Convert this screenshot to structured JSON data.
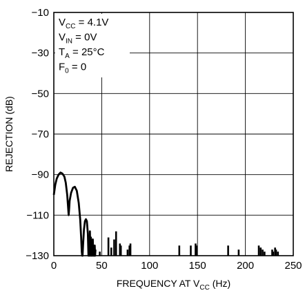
{
  "chart_data": {
    "type": "line",
    "xlabel": "FREQUENCY AT V",
    "xlabel_sub": "CC",
    "xlabel_suffix": " (Hz)",
    "ylabel": "REJECTION (dB)",
    "xlim": [
      0,
      250
    ],
    "ylim": [
      -130,
      -10
    ],
    "x_ticks": [
      0,
      50,
      100,
      150,
      200,
      250
    ],
    "y_ticks": [
      -130,
      -110,
      -90,
      -70,
      -50,
      -30,
      -10
    ],
    "grid": true,
    "annotations": [
      {
        "main": "V",
        "sub": "CC",
        "rest": " = 4.1V"
      },
      {
        "main": "V",
        "sub": "IN",
        "rest": " = 0V"
      },
      {
        "main": "T",
        "sub": "A",
        "rest": " = 25°C"
      },
      {
        "main": "F",
        "sub": "0",
        "rest": " = 0"
      }
    ],
    "series": [
      {
        "x": [
          0,
          1.5,
          3,
          5,
          7,
          9,
          11,
          12.5,
          14,
          15.5,
          16,
          16.5,
          18,
          20,
          22,
          24,
          26,
          27.5,
          28.5,
          29.2,
          29.6,
          30,
          30.6,
          31.5,
          32.5,
          33.5,
          34.5,
          35.5,
          36.2,
          36.8,
          37.2,
          37.7,
          38.2,
          38.7,
          39.2,
          39.7,
          40.2,
          40.7,
          41.2,
          41.7,
          42.2,
          42.7,
          43.1,
          43.5
        ],
        "y": [
          -100,
          -95,
          -92,
          -90,
          -89,
          -89.5,
          -91,
          -94,
          -100,
          -110,
          -107,
          -103,
          -99,
          -96.5,
          -96,
          -98,
          -104,
          -112,
          -121,
          -128,
          -130,
          -130,
          -124,
          -117,
          -113,
          -112,
          -113,
          -119,
          -130,
          -121,
          -130,
          -118,
          -130,
          -121,
          -130,
          -124,
          -130,
          -122,
          -130,
          -126,
          -130,
          -125,
          -130,
          -127
        ]
      },
      {
        "spikes": [
          [
            48,
            -128
          ],
          [
            57,
            -121
          ],
          [
            60,
            -126
          ],
          [
            63,
            -122
          ],
          [
            65,
            -118
          ],
          [
            69,
            -124
          ],
          [
            70,
            -125
          ],
          [
            77,
            -127
          ],
          [
            79,
            -125
          ],
          [
            80,
            -124
          ],
          [
            131,
            -125
          ],
          [
            143,
            -125
          ],
          [
            148,
            -124
          ],
          [
            149,
            -125
          ],
          [
            182,
            -125
          ],
          [
            193,
            -127
          ],
          [
            214,
            -125
          ],
          [
            216,
            -126
          ],
          [
            218,
            -127
          ],
          [
            220,
            -128
          ],
          [
            228,
            -127
          ],
          [
            229,
            -128
          ],
          [
            231,
            -126
          ],
          [
            232,
            -127
          ],
          [
            234,
            -128
          ]
        ]
      }
    ]
  }
}
